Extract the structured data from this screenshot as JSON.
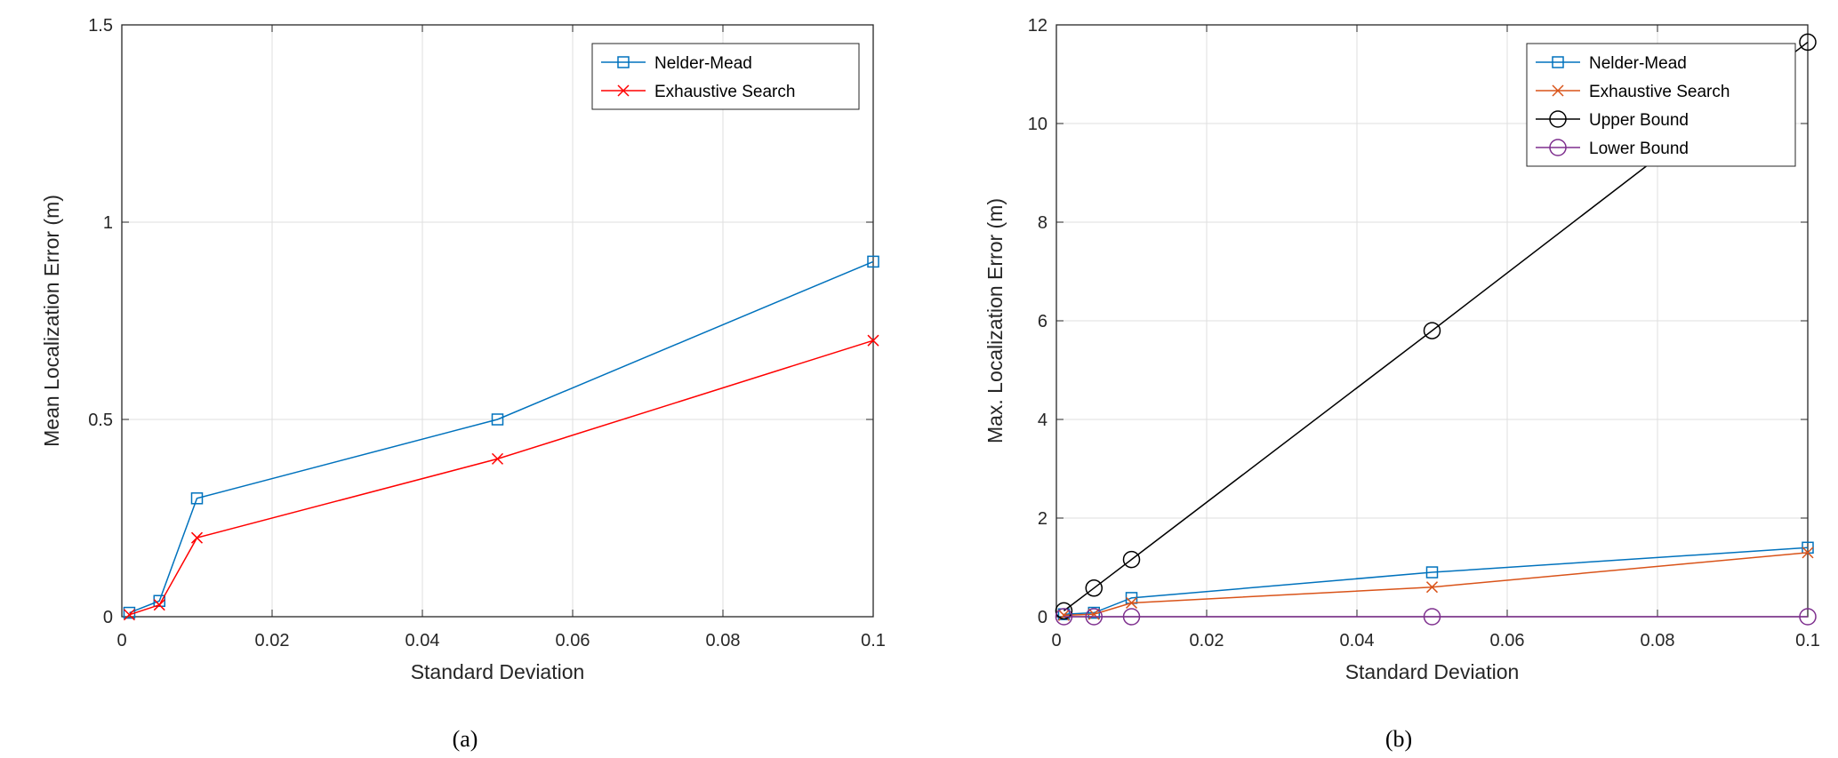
{
  "chart_data": [
    {
      "type": "line",
      "caption": "(a)",
      "xlabel": "Standard Deviation",
      "ylabel": "Mean Localization Error (m)",
      "xlim": [
        0,
        0.1
      ],
      "ylim": [
        0,
        1.5
      ],
      "xticks": [
        "0",
        "0.02",
        "0.04",
        "0.06",
        "0.08",
        "0.1"
      ],
      "yticks": [
        "0",
        "0.5",
        "1",
        "1.5"
      ],
      "grid": true,
      "legend_position": "top-right",
      "x": [
        0.001,
        0.005,
        0.01,
        0.05,
        0.1
      ],
      "series": [
        {
          "name": "Nelder-Mead",
          "values": [
            0.01,
            0.04,
            0.3,
            0.5,
            0.9
          ],
          "color": "#0072BD",
          "marker": "square"
        },
        {
          "name": "Exhaustive Search",
          "values": [
            0.005,
            0.03,
            0.2,
            0.4,
            0.7
          ],
          "color": "#FF0000",
          "marker": "x"
        }
      ]
    },
    {
      "type": "line",
      "caption": "(b)",
      "xlabel": "Standard Deviation",
      "ylabel": "Max. Localization Error (m)",
      "xlim": [
        0,
        0.1
      ],
      "ylim": [
        0,
        12
      ],
      "xticks": [
        "0",
        "0.02",
        "0.04",
        "0.06",
        "0.08",
        "0.1"
      ],
      "yticks": [
        "0",
        "2",
        "4",
        "6",
        "8",
        "10",
        "12"
      ],
      "grid": true,
      "legend_position": "top-right",
      "x": [
        0.001,
        0.005,
        0.01,
        0.05,
        0.1
      ],
      "series": [
        {
          "name": "Nelder-Mead",
          "values": [
            0.05,
            0.08,
            0.38,
            0.9,
            1.4
          ],
          "color": "#0072BD",
          "marker": "square"
        },
        {
          "name": "Exhaustive Search",
          "values": [
            0.03,
            0.05,
            0.28,
            0.6,
            1.3
          ],
          "color": "#D95319",
          "marker": "x"
        },
        {
          "name": "Upper Bound",
          "values": [
            0.12,
            0.58,
            1.16,
            5.8,
            11.65
          ],
          "color": "#000000",
          "marker": "circle"
        },
        {
          "name": "Lower Bound",
          "values": [
            0,
            0,
            0,
            0,
            0
          ],
          "color": "#7E2F8E",
          "marker": "circle"
        }
      ]
    }
  ]
}
